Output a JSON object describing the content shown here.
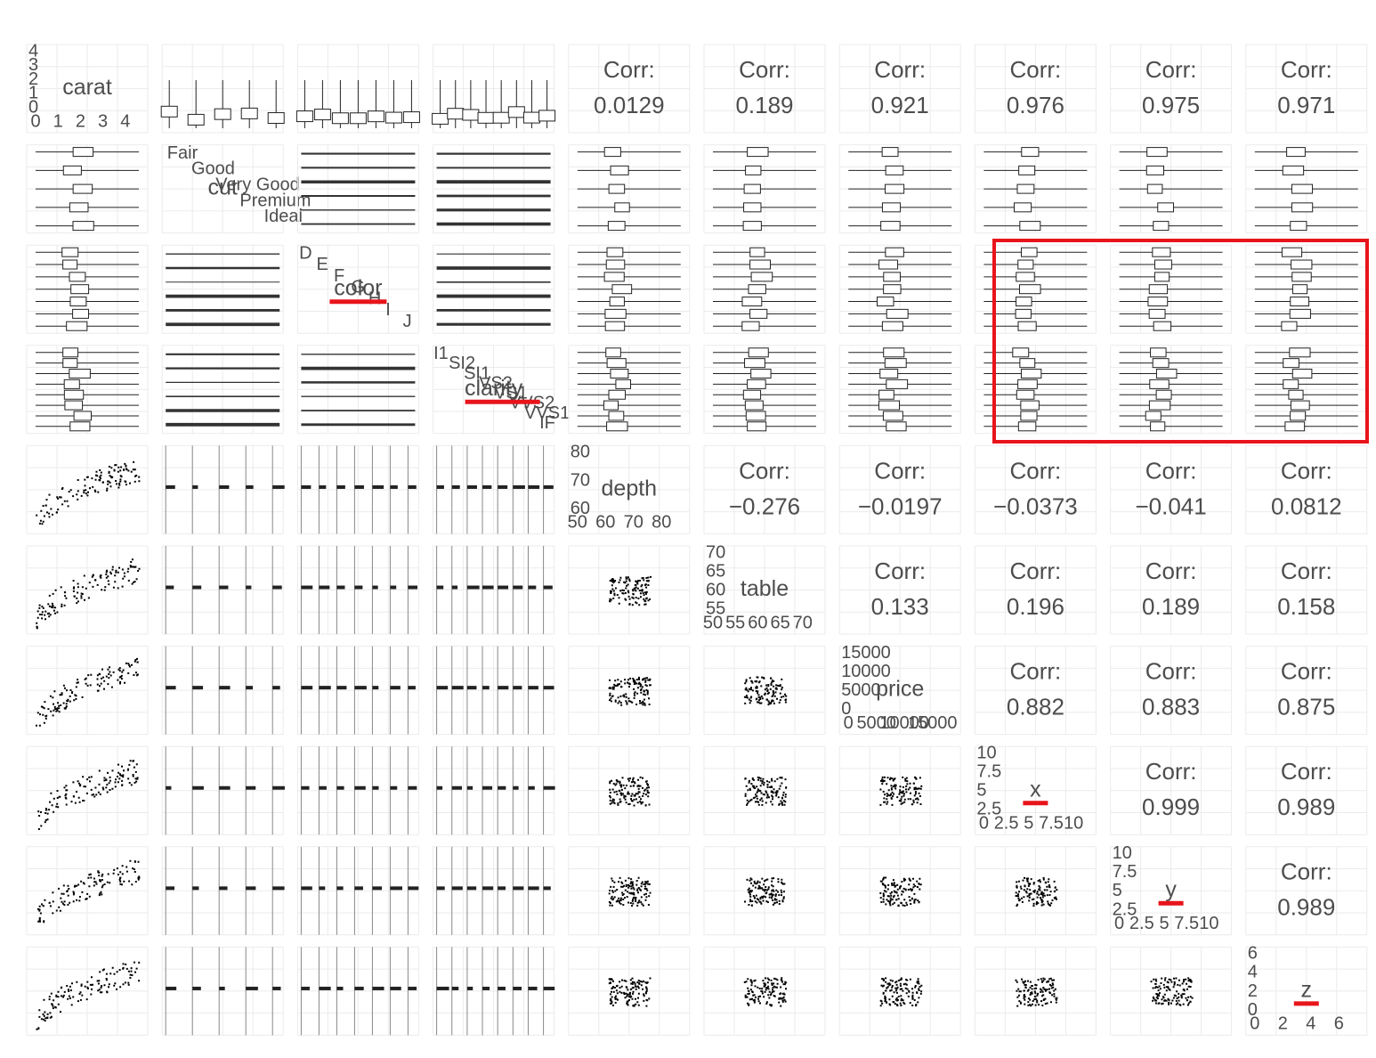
{
  "variables": [
    {
      "name": "carat",
      "yticks": [
        4,
        3,
        2,
        1,
        0
      ],
      "xticks": [
        0,
        1,
        2,
        3,
        4
      ]
    },
    {
      "name": "cut",
      "levels": [
        "Fair",
        "Good",
        "Very Good",
        "Premium",
        "Ideal"
      ]
    },
    {
      "name": "color",
      "levels": [
        "D",
        "E",
        "F",
        "G",
        "H",
        "I",
        "J"
      ]
    },
    {
      "name": "clarity",
      "levels": [
        "I1",
        "SI2",
        "SI1",
        "VS2",
        "VS1",
        "VVS2",
        "VVS1",
        "IF"
      ]
    },
    {
      "name": "depth",
      "yticks": [
        80,
        70,
        60
      ],
      "xticks": [
        50,
        60,
        70,
        80
      ]
    },
    {
      "name": "table",
      "yticks": [
        70,
        65,
        60,
        55
      ],
      "xticks": [
        50,
        55,
        60,
        65,
        70
      ]
    },
    {
      "name": "price",
      "yticks": [
        15000,
        10000,
        5000,
        0
      ],
      "xticks": [
        0,
        5000,
        10000,
        15000
      ]
    },
    {
      "name": "x",
      "yticks": [
        10,
        7.5,
        5,
        2.5
      ],
      "xticks": [
        0,
        2.5,
        5,
        7.5,
        10
      ]
    },
    {
      "name": "y",
      "yticks": [
        10,
        7.5,
        5,
        2.5
      ],
      "xticks": [
        0,
        2.5,
        5,
        7.5,
        10
      ]
    },
    {
      "name": "z",
      "yticks": [
        6,
        4,
        2,
        0
      ],
      "xticks": [
        0,
        2,
        4,
        6
      ]
    }
  ],
  "corr_label": "Corr:",
  "correlations": {
    "carat": [
      "0.0129",
      "0.189",
      "0.921",
      "0.976",
      "0.975",
      "0.971"
    ],
    "depth": [
      "−0.276",
      "−0.0197",
      "−0.0373",
      "−0.041",
      "0.0812"
    ],
    "table": [
      "0.133",
      "0.196",
      "0.189",
      "0.158"
    ],
    "price": [
      "0.882",
      "0.883",
      "0.875"
    ],
    "x": [
      "0.999",
      "0.989"
    ],
    "y": [
      "0.989"
    ]
  }
}
